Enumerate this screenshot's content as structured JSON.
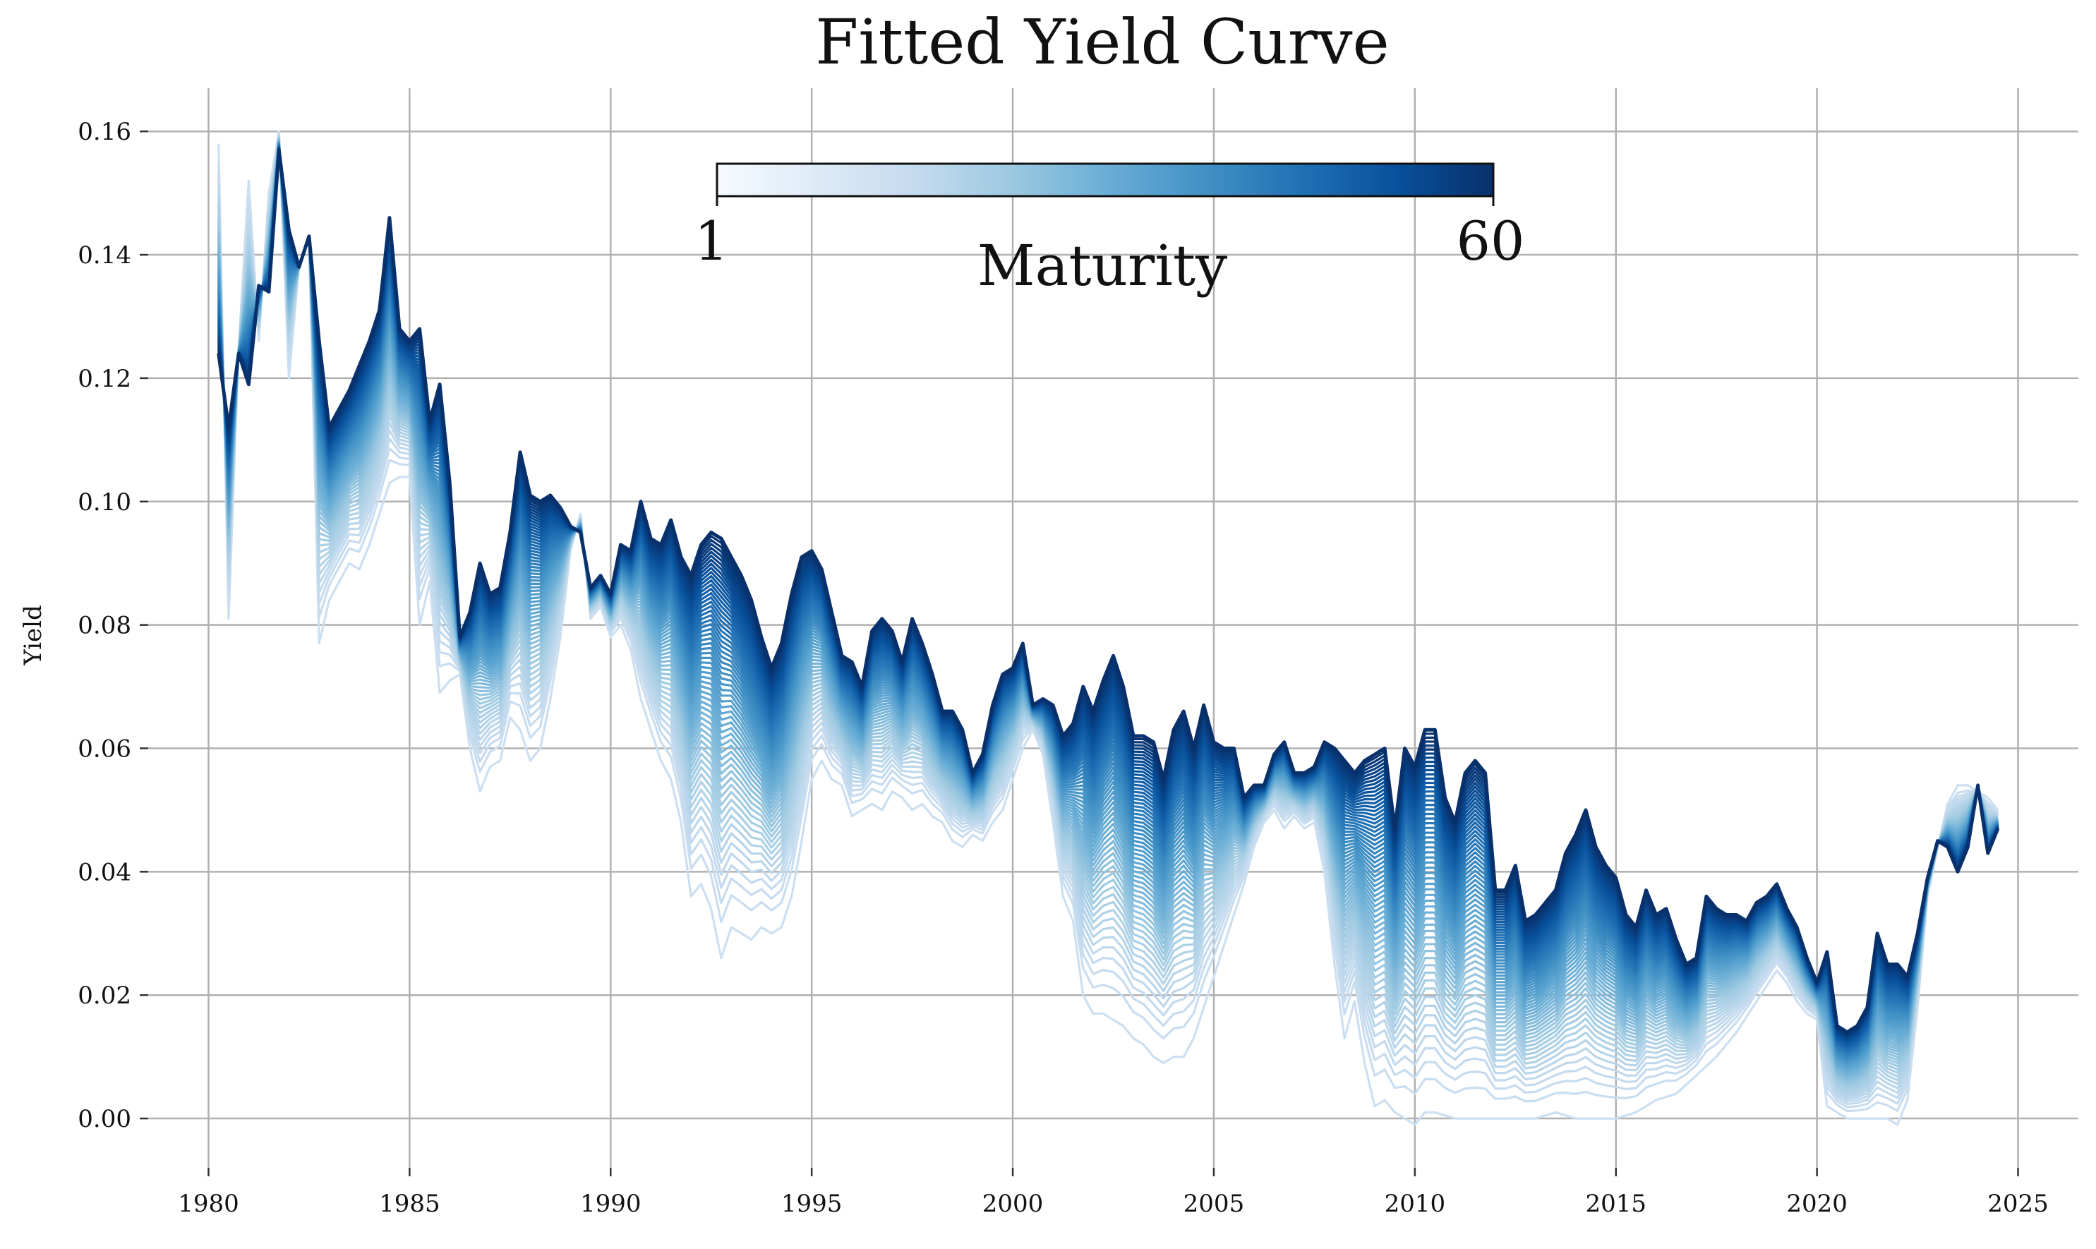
{
  "chart_data": {
    "type": "line",
    "title": "Fitted Yield Curve",
    "xlabel": "",
    "ylabel": "Yield",
    "xlim": [
      1978.5,
      2026.5
    ],
    "ylim": [
      -0.008,
      0.167
    ],
    "grid": true,
    "xticks": [
      1980,
      1985,
      1990,
      1995,
      2000,
      2005,
      2010,
      2015,
      2020,
      2025
    ],
    "yticks": [
      0.0,
      0.02,
      0.04,
      0.06,
      0.08,
      0.1,
      0.12,
      0.14,
      0.16
    ],
    "ytick_labels": [
      "0.00",
      "0.02",
      "0.04",
      "0.06",
      "0.08",
      "0.10",
      "0.12",
      "0.14",
      "0.16"
    ],
    "colorbar": {
      "label": "Maturity",
      "min_label": "1",
      "max_label": "60",
      "cmap": "Blues",
      "placement": "top-center",
      "colors": [
        "#f7fbff",
        "#deebf7",
        "#c6dbef",
        "#9ecae1",
        "#6baed6",
        "#4292c6",
        "#2171b5",
        "#08519c",
        "#08306b"
      ]
    },
    "series_count": 60,
    "short_maturity": [
      [
        1980.25,
        0.158
      ],
      [
        1980.5,
        0.081
      ],
      [
        1980.75,
        0.125
      ],
      [
        1981.0,
        0.152
      ],
      [
        1981.25,
        0.126
      ],
      [
        1981.5,
        0.15
      ],
      [
        1981.75,
        0.16
      ],
      [
        1982.0,
        0.12
      ],
      [
        1982.25,
        0.138
      ],
      [
        1982.5,
        0.143
      ],
      [
        1982.75,
        0.077
      ],
      [
        1983.0,
        0.084
      ],
      [
        1983.5,
        0.09
      ],
      [
        1983.75,
        0.089
      ],
      [
        1984.0,
        0.093
      ],
      [
        1984.5,
        0.103
      ],
      [
        1984.75,
        0.104
      ],
      [
        1985.0,
        0.104
      ],
      [
        1985.25,
        0.08
      ],
      [
        1985.5,
        0.087
      ],
      [
        1985.75,
        0.069
      ],
      [
        1986.0,
        0.071
      ],
      [
        1986.25,
        0.072
      ],
      [
        1986.5,
        0.06
      ],
      [
        1986.75,
        0.053
      ],
      [
        1987.0,
        0.057
      ],
      [
        1987.25,
        0.058
      ],
      [
        1987.5,
        0.065
      ],
      [
        1987.75,
        0.063
      ],
      [
        1988.0,
        0.058
      ],
      [
        1988.25,
        0.06
      ],
      [
        1988.5,
        0.068
      ],
      [
        1988.75,
        0.078
      ],
      [
        1989.0,
        0.092
      ],
      [
        1989.25,
        0.098
      ],
      [
        1989.5,
        0.081
      ],
      [
        1989.75,
        0.083
      ],
      [
        1990.0,
        0.078
      ],
      [
        1990.25,
        0.08
      ],
      [
        1990.5,
        0.076
      ],
      [
        1990.75,
        0.068
      ],
      [
        1991.0,
        0.063
      ],
      [
        1991.25,
        0.058
      ],
      [
        1991.5,
        0.055
      ],
      [
        1991.75,
        0.048
      ],
      [
        1992.0,
        0.036
      ],
      [
        1992.25,
        0.038
      ],
      [
        1992.5,
        0.034
      ],
      [
        1992.75,
        0.026
      ],
      [
        1993.0,
        0.031
      ],
      [
        1993.25,
        0.03
      ],
      [
        1993.5,
        0.029
      ],
      [
        1993.75,
        0.031
      ],
      [
        1994.0,
        0.03
      ],
      [
        1994.25,
        0.031
      ],
      [
        1994.5,
        0.036
      ],
      [
        1994.75,
        0.045
      ],
      [
        1995.0,
        0.055
      ],
      [
        1995.25,
        0.058
      ],
      [
        1995.5,
        0.055
      ],
      [
        1995.75,
        0.054
      ],
      [
        1996.0,
        0.049
      ],
      [
        1996.25,
        0.05
      ],
      [
        1996.5,
        0.051
      ],
      [
        1996.75,
        0.05
      ],
      [
        1997.0,
        0.053
      ],
      [
        1997.25,
        0.052
      ],
      [
        1997.5,
        0.05
      ],
      [
        1997.75,
        0.051
      ],
      [
        1998.0,
        0.049
      ],
      [
        1998.25,
        0.048
      ],
      [
        1998.5,
        0.045
      ],
      [
        1998.75,
        0.044
      ],
      [
        1999.0,
        0.046
      ],
      [
        1999.25,
        0.045
      ],
      [
        1999.5,
        0.048
      ],
      [
        1999.75,
        0.05
      ],
      [
        2000.0,
        0.055
      ],
      [
        2000.25,
        0.06
      ],
      [
        2000.5,
        0.063
      ],
      [
        2000.75,
        0.059
      ],
      [
        2001.0,
        0.048
      ],
      [
        2001.25,
        0.036
      ],
      [
        2001.5,
        0.032
      ],
      [
        2001.75,
        0.02
      ],
      [
        2002.0,
        0.017
      ],
      [
        2002.25,
        0.017
      ],
      [
        2002.5,
        0.016
      ],
      [
        2002.75,
        0.015
      ],
      [
        2003.0,
        0.013
      ],
      [
        2003.25,
        0.012
      ],
      [
        2003.5,
        0.01
      ],
      [
        2003.75,
        0.009
      ],
      [
        2004.0,
        0.01
      ],
      [
        2004.25,
        0.01
      ],
      [
        2004.5,
        0.013
      ],
      [
        2004.75,
        0.018
      ],
      [
        2005.0,
        0.023
      ],
      [
        2005.25,
        0.028
      ],
      [
        2005.5,
        0.033
      ],
      [
        2005.75,
        0.038
      ],
      [
        2006.0,
        0.044
      ],
      [
        2006.25,
        0.048
      ],
      [
        2006.5,
        0.05
      ],
      [
        2006.75,
        0.047
      ],
      [
        2007.0,
        0.049
      ],
      [
        2007.25,
        0.047
      ],
      [
        2007.5,
        0.048
      ],
      [
        2007.75,
        0.04
      ],
      [
        2008.0,
        0.025
      ],
      [
        2008.25,
        0.013
      ],
      [
        2008.5,
        0.019
      ],
      [
        2008.75,
        0.009
      ],
      [
        2009.0,
        0.002
      ],
      [
        2009.25,
        0.003
      ],
      [
        2009.5,
        0.001
      ],
      [
        2009.75,
        0.0
      ],
      [
        2010.0,
        -0.001
      ],
      [
        2010.25,
        0.001
      ],
      [
        2010.5,
        0.001
      ],
      [
        2011.0,
        0.0
      ],
      [
        2011.5,
        0.0
      ],
      [
        2012.0,
        0.0
      ],
      [
        2012.5,
        0.0
      ],
      [
        2013.0,
        0.0
      ],
      [
        2013.5,
        0.001
      ],
      [
        2014.0,
        0.0
      ],
      [
        2014.5,
        0.0
      ],
      [
        2015.0,
        0.0
      ],
      [
        2015.5,
        0.001
      ],
      [
        2016.0,
        0.003
      ],
      [
        2016.5,
        0.004
      ],
      [
        2017.0,
        0.007
      ],
      [
        2017.5,
        0.01
      ],
      [
        2018.0,
        0.014
      ],
      [
        2018.5,
        0.019
      ],
      [
        2019.0,
        0.024
      ],
      [
        2019.25,
        0.022
      ],
      [
        2019.5,
        0.019
      ],
      [
        2019.75,
        0.017
      ],
      [
        2020.0,
        0.016
      ],
      [
        2020.25,
        0.002
      ],
      [
        2020.5,
        0.001
      ],
      [
        2020.75,
        0.0
      ],
      [
        2021.0,
        0.0
      ],
      [
        2021.25,
        0.0
      ],
      [
        2021.5,
        0.0
      ],
      [
        2021.75,
        0.0
      ],
      [
        2022.0,
        -0.001
      ],
      [
        2022.25,
        0.003
      ],
      [
        2022.5,
        0.018
      ],
      [
        2022.75,
        0.036
      ],
      [
        2023.0,
        0.044
      ],
      [
        2023.25,
        0.051
      ],
      [
        2023.5,
        0.054
      ],
      [
        2023.75,
        0.054
      ],
      [
        2024.0,
        0.053
      ],
      [
        2024.25,
        0.052
      ],
      [
        2024.5,
        0.05
      ]
    ],
    "long_maturity": [
      [
        1980.25,
        0.124
      ],
      [
        1980.5,
        0.112
      ],
      [
        1980.75,
        0.124
      ],
      [
        1981.0,
        0.119
      ],
      [
        1981.25,
        0.135
      ],
      [
        1981.5,
        0.134
      ],
      [
        1981.75,
        0.157
      ],
      [
        1982.0,
        0.144
      ],
      [
        1982.25,
        0.138
      ],
      [
        1982.5,
        0.143
      ],
      [
        1982.75,
        0.126
      ],
      [
        1983.0,
        0.112
      ],
      [
        1983.5,
        0.118
      ],
      [
        1983.75,
        0.122
      ],
      [
        1984.0,
        0.126
      ],
      [
        1984.25,
        0.131
      ],
      [
        1984.5,
        0.146
      ],
      [
        1984.75,
        0.128
      ],
      [
        1985.0,
        0.126
      ],
      [
        1985.25,
        0.128
      ],
      [
        1985.5,
        0.113
      ],
      [
        1985.75,
        0.119
      ],
      [
        1986.0,
        0.103
      ],
      [
        1986.25,
        0.078
      ],
      [
        1986.5,
        0.082
      ],
      [
        1986.75,
        0.09
      ],
      [
        1987.0,
        0.085
      ],
      [
        1987.25,
        0.086
      ],
      [
        1987.5,
        0.095
      ],
      [
        1987.75,
        0.108
      ],
      [
        1988.0,
        0.101
      ],
      [
        1988.25,
        0.1
      ],
      [
        1988.5,
        0.101
      ],
      [
        1988.75,
        0.099
      ],
      [
        1989.0,
        0.096
      ],
      [
        1989.25,
        0.095
      ],
      [
        1989.5,
        0.086
      ],
      [
        1989.75,
        0.088
      ],
      [
        1990.0,
        0.085
      ],
      [
        1990.25,
        0.093
      ],
      [
        1990.5,
        0.092
      ],
      [
        1990.75,
        0.1
      ],
      [
        1991.0,
        0.094
      ],
      [
        1991.25,
        0.093
      ],
      [
        1991.5,
        0.097
      ],
      [
        1991.75,
        0.091
      ],
      [
        1992.0,
        0.088
      ],
      [
        1992.25,
        0.093
      ],
      [
        1992.5,
        0.095
      ],
      [
        1992.75,
        0.094
      ],
      [
        1993.0,
        0.091
      ],
      [
        1993.25,
        0.088
      ],
      [
        1993.5,
        0.084
      ],
      [
        1993.75,
        0.078
      ],
      [
        1994.0,
        0.073
      ],
      [
        1994.25,
        0.077
      ],
      [
        1994.5,
        0.085
      ],
      [
        1994.75,
        0.091
      ],
      [
        1995.0,
        0.092
      ],
      [
        1995.25,
        0.089
      ],
      [
        1995.5,
        0.082
      ],
      [
        1995.75,
        0.075
      ],
      [
        1996.0,
        0.074
      ],
      [
        1996.25,
        0.07
      ],
      [
        1996.5,
        0.079
      ],
      [
        1996.75,
        0.081
      ],
      [
        1997.0,
        0.079
      ],
      [
        1997.25,
        0.074
      ],
      [
        1997.5,
        0.081
      ],
      [
        1997.75,
        0.077
      ],
      [
        1998.0,
        0.072
      ],
      [
        1998.25,
        0.066
      ],
      [
        1998.5,
        0.066
      ],
      [
        1998.75,
        0.063
      ],
      [
        1999.0,
        0.056
      ],
      [
        1999.25,
        0.059
      ],
      [
        1999.5,
        0.067
      ],
      [
        1999.75,
        0.072
      ],
      [
        2000.0,
        0.073
      ],
      [
        2000.25,
        0.077
      ],
      [
        2000.5,
        0.067
      ],
      [
        2000.75,
        0.068
      ],
      [
        2001.0,
        0.067
      ],
      [
        2001.25,
        0.062
      ],
      [
        2001.5,
        0.064
      ],
      [
        2001.75,
        0.07
      ],
      [
        2002.0,
        0.066
      ],
      [
        2002.25,
        0.071
      ],
      [
        2002.5,
        0.075
      ],
      [
        2002.75,
        0.07
      ],
      [
        2003.0,
        0.062
      ],
      [
        2003.25,
        0.062
      ],
      [
        2003.5,
        0.061
      ],
      [
        2003.75,
        0.055
      ],
      [
        2004.0,
        0.063
      ],
      [
        2004.25,
        0.066
      ],
      [
        2004.5,
        0.06
      ],
      [
        2004.75,
        0.067
      ],
      [
        2005.0,
        0.061
      ],
      [
        2005.25,
        0.06
      ],
      [
        2005.5,
        0.06
      ],
      [
        2005.75,
        0.052
      ],
      [
        2006.0,
        0.054
      ],
      [
        2006.25,
        0.054
      ],
      [
        2006.5,
        0.059
      ],
      [
        2006.75,
        0.061
      ],
      [
        2007.0,
        0.056
      ],
      [
        2007.25,
        0.056
      ],
      [
        2007.5,
        0.057
      ],
      [
        2007.75,
        0.061
      ],
      [
        2008.0,
        0.06
      ],
      [
        2008.25,
        0.058
      ],
      [
        2008.5,
        0.056
      ],
      [
        2008.75,
        0.058
      ],
      [
        2009.0,
        0.059
      ],
      [
        2009.25,
        0.06
      ],
      [
        2009.5,
        0.047
      ],
      [
        2009.75,
        0.06
      ],
      [
        2010.0,
        0.057
      ],
      [
        2010.25,
        0.063
      ],
      [
        2010.5,
        0.063
      ],
      [
        2010.75,
        0.052
      ],
      [
        2011.0,
        0.048
      ],
      [
        2011.25,
        0.056
      ],
      [
        2011.5,
        0.058
      ],
      [
        2011.75,
        0.056
      ],
      [
        2012.0,
        0.037
      ],
      [
        2012.25,
        0.037
      ],
      [
        2012.5,
        0.041
      ],
      [
        2012.75,
        0.032
      ],
      [
        2013.0,
        0.033
      ],
      [
        2013.25,
        0.035
      ],
      [
        2013.5,
        0.037
      ],
      [
        2013.75,
        0.043
      ],
      [
        2014.0,
        0.046
      ],
      [
        2014.25,
        0.05
      ],
      [
        2014.5,
        0.044
      ],
      [
        2014.75,
        0.041
      ],
      [
        2015.0,
        0.039
      ],
      [
        2015.25,
        0.033
      ],
      [
        2015.5,
        0.031
      ],
      [
        2015.75,
        0.037
      ],
      [
        2016.0,
        0.033
      ],
      [
        2016.25,
        0.034
      ],
      [
        2016.5,
        0.029
      ],
      [
        2016.75,
        0.025
      ],
      [
        2017.0,
        0.026
      ],
      [
        2017.25,
        0.036
      ],
      [
        2017.5,
        0.034
      ],
      [
        2017.75,
        0.033
      ],
      [
        2018.0,
        0.033
      ],
      [
        2018.25,
        0.032
      ],
      [
        2018.5,
        0.035
      ],
      [
        2018.75,
        0.036
      ],
      [
        2019.0,
        0.038
      ],
      [
        2019.25,
        0.034
      ],
      [
        2019.5,
        0.031
      ],
      [
        2019.75,
        0.026
      ],
      [
        2020.0,
        0.022
      ],
      [
        2020.25,
        0.027
      ],
      [
        2020.5,
        0.015
      ],
      [
        2020.75,
        0.014
      ],
      [
        2021.0,
        0.015
      ],
      [
        2021.25,
        0.018
      ],
      [
        2021.5,
        0.03
      ],
      [
        2021.75,
        0.025
      ],
      [
        2022.0,
        0.025
      ],
      [
        2022.25,
        0.023
      ],
      [
        2022.5,
        0.03
      ],
      [
        2022.75,
        0.039
      ],
      [
        2023.0,
        0.045
      ],
      [
        2023.25,
        0.044
      ],
      [
        2023.5,
        0.04
      ],
      [
        2023.75,
        0.044
      ],
      [
        2024.0,
        0.054
      ],
      [
        2024.25,
        0.043
      ],
      [
        2024.5,
        0.047
      ],
      [
        2024.75,
        0.052
      ]
    ]
  }
}
